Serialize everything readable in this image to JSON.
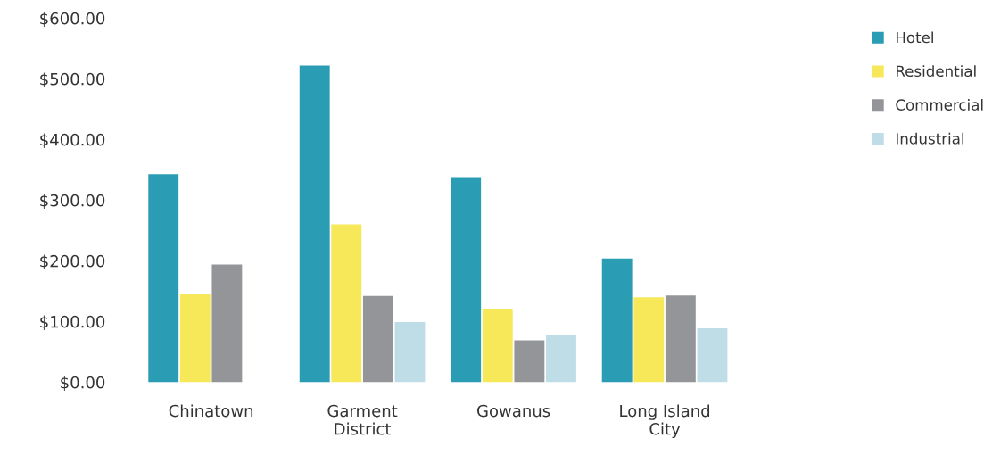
{
  "chart_data": {
    "type": "bar",
    "categories": [
      "Chinatown",
      "Garment\nDistrict",
      "Gowanus",
      "Long Island\nCity"
    ],
    "series": [
      {
        "name": "Hotel",
        "color": "#2a9db5",
        "values": [
          343,
          522,
          338,
          204
        ]
      },
      {
        "name": "Residential",
        "color": "#f7e85a",
        "values": [
          146,
          260,
          121,
          140
        ]
      },
      {
        "name": "Commercial",
        "color": "#939598",
        "values": [
          194,
          142,
          69,
          143
        ]
      },
      {
        "name": "Industrial",
        "color": "#bfdde6",
        "values": [
          null,
          99,
          77,
          89
        ]
      }
    ],
    "ylim": [
      0,
      600
    ],
    "yticks": [
      {
        "value": 0,
        "label": "$0.00"
      },
      {
        "value": 100,
        "label": "$100.00"
      },
      {
        "value": 200,
        "label": "$200.00"
      },
      {
        "value": 300,
        "label": "$300.00"
      },
      {
        "value": 400,
        "label": "$400.00"
      },
      {
        "value": 500,
        "label": "$500.00"
      },
      {
        "value": 600,
        "label": "$600.00"
      }
    ],
    "grid": false,
    "legend": "top right"
  }
}
